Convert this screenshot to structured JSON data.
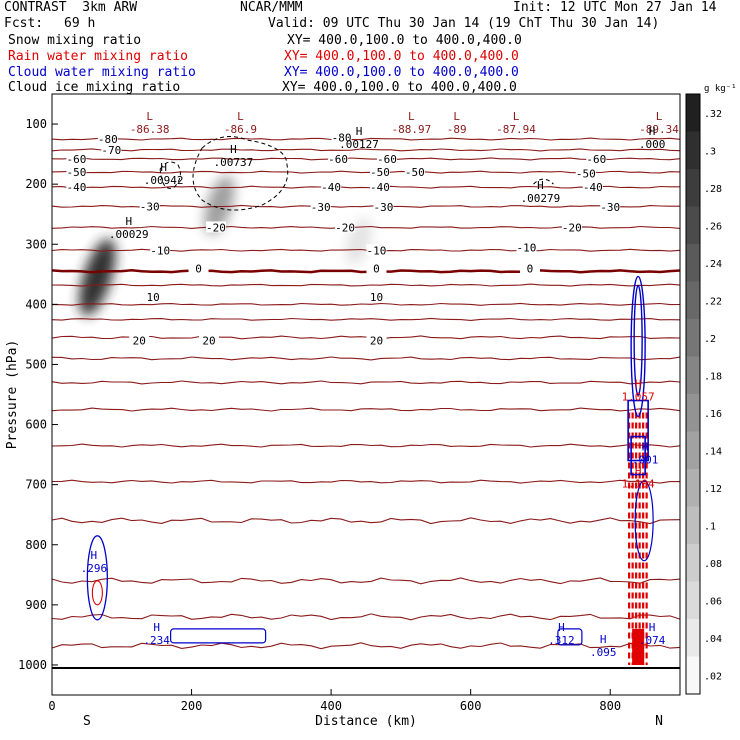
{
  "header": {
    "model": "CONTRAST  3km ARW",
    "org": "NCAR/MMM",
    "init": "Init: 12 UTC Mon 27 Jan 14",
    "fcst_label": "Fcst:",
    "fcst_value": "69 h",
    "valid": "Valid: 09 UTC Thu 30 Jan 14 (19 ChT Thu 30 Jan 14)",
    "fields": [
      {
        "name": "Snow mixing ratio",
        "xy": "XY= 400.0,100.0 to 400.0,400.0",
        "color": "#000000"
      },
      {
        "name": "Rain water mixing ratio",
        "xy": "XY= 400.0,100.0 to 400.0,400.0",
        "color": "#e00000"
      },
      {
        "name": "Cloud water mixing ratio",
        "xy": "XY= 400.0,100.0 to 400.0,400.0",
        "color": "#0000cc"
      },
      {
        "name": "Cloud ice mixing ratio",
        "xy": "XY= 400.0,100.0 to 400.0,400.0",
        "color": "#000000"
      }
    ]
  },
  "colors": {
    "temperature": "#8b1a1a",
    "freezing": "#7a0000",
    "rain": "#e00000",
    "cloud_water": "#0000cc",
    "ice": "#000000"
  },
  "chart_data": {
    "type": "cross-section",
    "xlabel": "Distance (km)",
    "ylabel": "Pressure (hPa)",
    "xlim": [
      0,
      900
    ],
    "ylim": [
      1050,
      50
    ],
    "x_ticks": [
      0,
      200,
      400,
      600,
      800
    ],
    "x_tick_labels": [
      "0",
      "200",
      "400",
      "600",
      "800"
    ],
    "y_ticks": [
      100,
      200,
      300,
      400,
      500,
      600,
      700,
      800,
      900,
      1000
    ],
    "y_tick_labels": [
      "100",
      "200",
      "300",
      "400",
      "500",
      "600",
      "700",
      "800",
      "900",
      "1000"
    ],
    "end_labels": {
      "left": "S",
      "right": "N"
    },
    "colorbar": {
      "unit": "g kg⁻¹",
      "levels": [
        0.02,
        0.04,
        0.06,
        0.08,
        0.1,
        0.12,
        0.14,
        0.16,
        0.18,
        0.2,
        0.22,
        0.24,
        0.26,
        0.28,
        0.3,
        0.32
      ],
      "labels": [
        ".02",
        ".04",
        ".06",
        ".08",
        ".1",
        ".12",
        ".14",
        ".16",
        ".18",
        ".2",
        ".22",
        ".24",
        ".26",
        ".28",
        ".3",
        ".32"
      ]
    },
    "temperature_contours": [
      {
        "value": -80,
        "pressure": 125
      },
      {
        "value": -70,
        "pressure": 143
      },
      {
        "value": -60,
        "pressure": 158
      },
      {
        "value": -50,
        "pressure": 180
      },
      {
        "value": -40,
        "pressure": 205
      },
      {
        "value": -30,
        "pressure": 237
      },
      {
        "value": -20,
        "pressure": 272
      },
      {
        "value": -10,
        "pressure": 310
      },
      {
        "value": 0,
        "pressure": 345
      },
      {
        "value": 10,
        "pressure": 368
      },
      {
        "value": 20,
        "pressure": 400
      },
      {
        "value": 30,
        "pressure": 425
      },
      {
        "value": 40,
        "pressure": 455
      },
      {
        "value": 50,
        "pressure": 490
      },
      {
        "value": 60,
        "pressure": 530
      },
      {
        "value": 70,
        "pressure": 575
      },
      {
        "value": 80,
        "pressure": 635
      },
      {
        "value": 90,
        "pressure": 695
      },
      {
        "value": 100,
        "pressure": 760
      },
      {
        "value": 110,
        "pressure": 860
      },
      {
        "value": 120,
        "pressure": 920
      },
      {
        "value": 130,
        "pressure": 968
      }
    ],
    "contour_labels": [
      {
        "text": "-80",
        "x": 80,
        "p": 125
      },
      {
        "text": "-80",
        "x": 415,
        "p": 122
      },
      {
        "text": "-70",
        "x": 85,
        "p": 143
      },
      {
        "text": "-60",
        "x": 35,
        "p": 158
      },
      {
        "text": "-60",
        "x": 410,
        "p": 158
      },
      {
        "text": "-60",
        "x": 480,
        "p": 158
      },
      {
        "text": "-60",
        "x": 780,
        "p": 158
      },
      {
        "text": "-50",
        "x": 35,
        "p": 180
      },
      {
        "text": "-50",
        "x": 470,
        "p": 180
      },
      {
        "text": "-50",
        "x": 520,
        "p": 180
      },
      {
        "text": "-50",
        "x": 765,
        "p": 182
      },
      {
        "text": "-40",
        "x": 35,
        "p": 205
      },
      {
        "text": "-40",
        "x": 400,
        "p": 205
      },
      {
        "text": "-40",
        "x": 470,
        "p": 205
      },
      {
        "text": "-40",
        "x": 775,
        "p": 205
      },
      {
        "text": "-30",
        "x": 140,
        "p": 237
      },
      {
        "text": "-30",
        "x": 385,
        "p": 238
      },
      {
        "text": "-30",
        "x": 475,
        "p": 238
      },
      {
        "text": "-30",
        "x": 800,
        "p": 238
      },
      {
        "text": "-20",
        "x": 235,
        "p": 272
      },
      {
        "text": "-20",
        "x": 420,
        "p": 272
      },
      {
        "text": "-20",
        "x": 745,
        "p": 272
      },
      {
        "text": "-10",
        "x": 155,
        "p": 310
      },
      {
        "text": "-10",
        "x": 465,
        "p": 310
      },
      {
        "text": "-10",
        "x": 680,
        "p": 305
      },
      {
        "text": "0",
        "x": 210,
        "p": 340
      },
      {
        "text": "0",
        "x": 465,
        "p": 340
      },
      {
        "text": "0",
        "x": 685,
        "p": 340
      },
      {
        "text": "10",
        "x": 145,
        "p": 388
      },
      {
        "text": "10",
        "x": 465,
        "p": 388
      },
      {
        "text": "20",
        "x": 125,
        "p": 460
      },
      {
        "text": "20",
        "x": 225,
        "p": 460
      },
      {
        "text": "20",
        "x": 465,
        "p": 460
      }
    ],
    "extrema": [
      {
        "kind": "L",
        "value": "-86.38",
        "x": 140,
        "p": 105
      },
      {
        "kind": "L",
        "value": "-86.9",
        "x": 270,
        "p": 105
      },
      {
        "kind": "L",
        "value": "-88.97",
        "x": 515,
        "p": 105
      },
      {
        "kind": "L",
        "value": "-89",
        "x": 580,
        "p": 105
      },
      {
        "kind": "L",
        "value": "-87.94",
        "x": 665,
        "p": 105
      },
      {
        "kind": "L",
        "value": "-89.34",
        "x": 870,
        "p": 105
      },
      {
        "kind": "H",
        "value": ".00127",
        "x": 440,
        "p": 130
      },
      {
        "kind": "H",
        "value": ".00737",
        "x": 260,
        "p": 160
      },
      {
        "kind": "H",
        "value": ".00942",
        "x": 160,
        "p": 190
      },
      {
        "kind": "H",
        "value": ".00279",
        "x": 700,
        "p": 220
      },
      {
        "kind": "H",
        "value": ".000",
        "x": 860,
        "p": 130
      },
      {
        "kind": "H",
        "value": ".00029",
        "x": 110,
        "p": 280
      },
      {
        "kind": "H",
        "value": "1.057",
        "x": 840,
        "p": 550
      },
      {
        "kind": "H",
        "value": ".001",
        "x": 850,
        "p": 655
      },
      {
        "kind": "H",
        "value": "1.104",
        "x": 840,
        "p": 695
      },
      {
        "kind": "H",
        "value": ".296",
        "x": 60,
        "p": 835
      },
      {
        "kind": "H",
        "value": ".234",
        "x": 150,
        "p": 955
      },
      {
        "kind": "H",
        "value": ".312",
        "x": 730,
        "p": 955
      },
      {
        "kind": "H",
        "value": ".095",
        "x": 790,
        "p": 975
      },
      {
        "kind": "H",
        "value": ".074",
        "x": 860,
        "p": 955
      }
    ],
    "snow_blobs": [
      {
        "x": 65,
        "p": 355,
        "max": 0.3
      },
      {
        "x": 240,
        "p": 235,
        "max": 0.14
      },
      {
        "x": 440,
        "p": 295,
        "max": 0.04
      }
    ]
  }
}
